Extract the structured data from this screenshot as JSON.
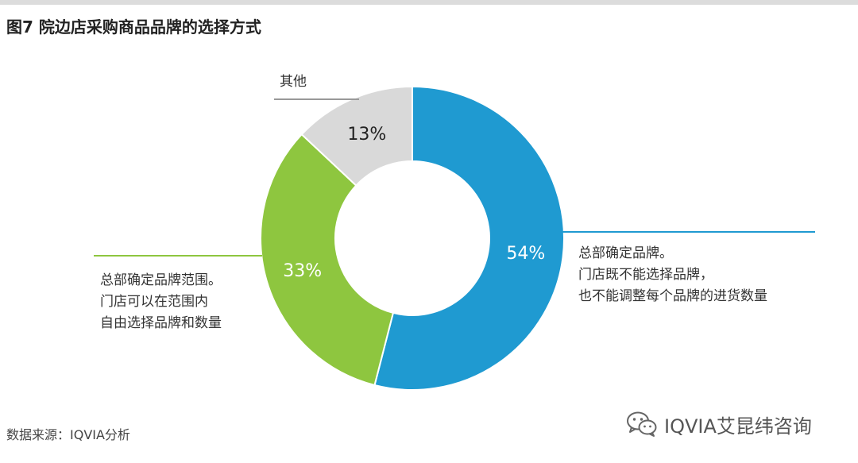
{
  "title": "图7 院边店采购商品品牌的选择方式",
  "source": "数据来源：IQVIA分析",
  "watermark": {
    "text": "IQVIA艾昆纬咨询",
    "icon": "wechat-icon"
  },
  "chart_data": {
    "type": "donut",
    "title": "图7 院边店采购商品品牌的选择方式",
    "slices": [
      {
        "label": "54%",
        "value": 54,
        "color": "#1f9ad1"
      },
      {
        "label": "33%",
        "value": 33,
        "color": "#8ec63f"
      },
      {
        "label": "13%",
        "value": 13,
        "color": "#d9d9d9"
      }
    ],
    "annotations": [
      {
        "lines": [
          "总部确定品牌。",
          "门店既不能选择品牌，",
          "也不能调整每个品牌的进货数量"
        ],
        "color": "#1f9ad1"
      },
      {
        "lines": [
          "总部确定品牌范围。",
          "门店可以在范围内",
          "自由选择品牌和数量"
        ],
        "color": "#8ec63f"
      },
      {
        "lines": [
          "其他"
        ],
        "color": "#999999"
      }
    ]
  }
}
